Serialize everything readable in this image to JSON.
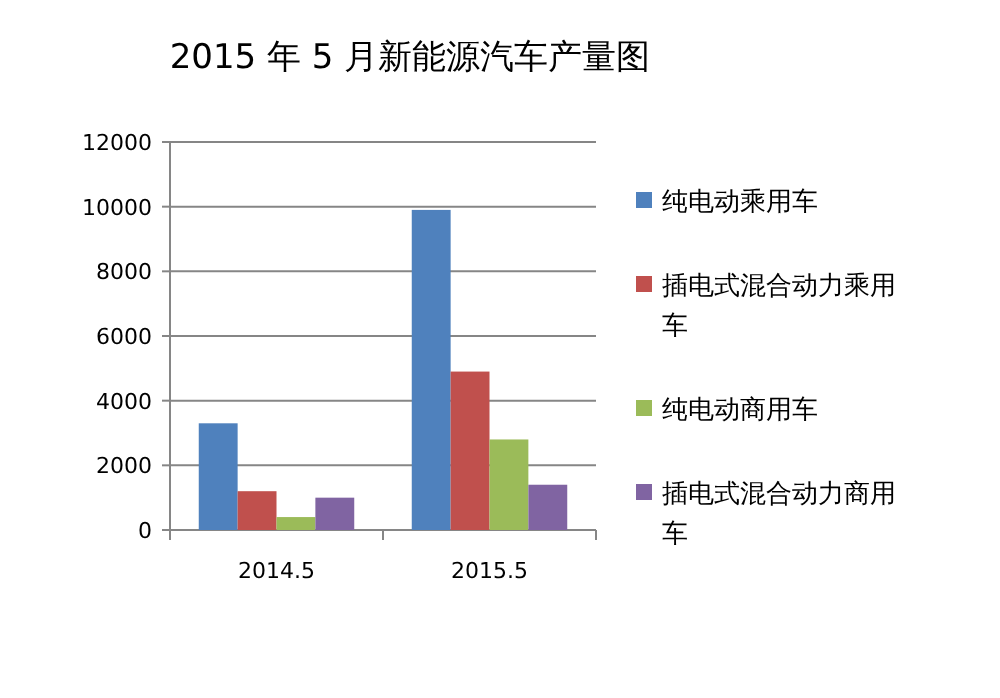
{
  "chart_data": {
    "type": "bar",
    "title": "2015 年 5 月新能源汽车产量图",
    "categories": [
      "2014.5",
      "2015.5"
    ],
    "series": [
      {
        "name": "纯电动乘用车",
        "color": "#4f81bd",
        "values": [
          3300,
          9900
        ]
      },
      {
        "name": "插电式混合动力乘用车",
        "color": "#c0504d",
        "values": [
          1200,
          4900
        ]
      },
      {
        "name": "纯电动商用车",
        "color": "#9bbb59",
        "values": [
          400,
          2800
        ]
      },
      {
        "name": "插电式混合动力商用车",
        "color": "#8064a2",
        "values": [
          1000,
          1400
        ]
      }
    ],
    "ylim": [
      0,
      12000
    ],
    "yticks": [
      0,
      2000,
      4000,
      6000,
      8000,
      10000,
      12000
    ],
    "grid": "y",
    "legend": "right"
  }
}
